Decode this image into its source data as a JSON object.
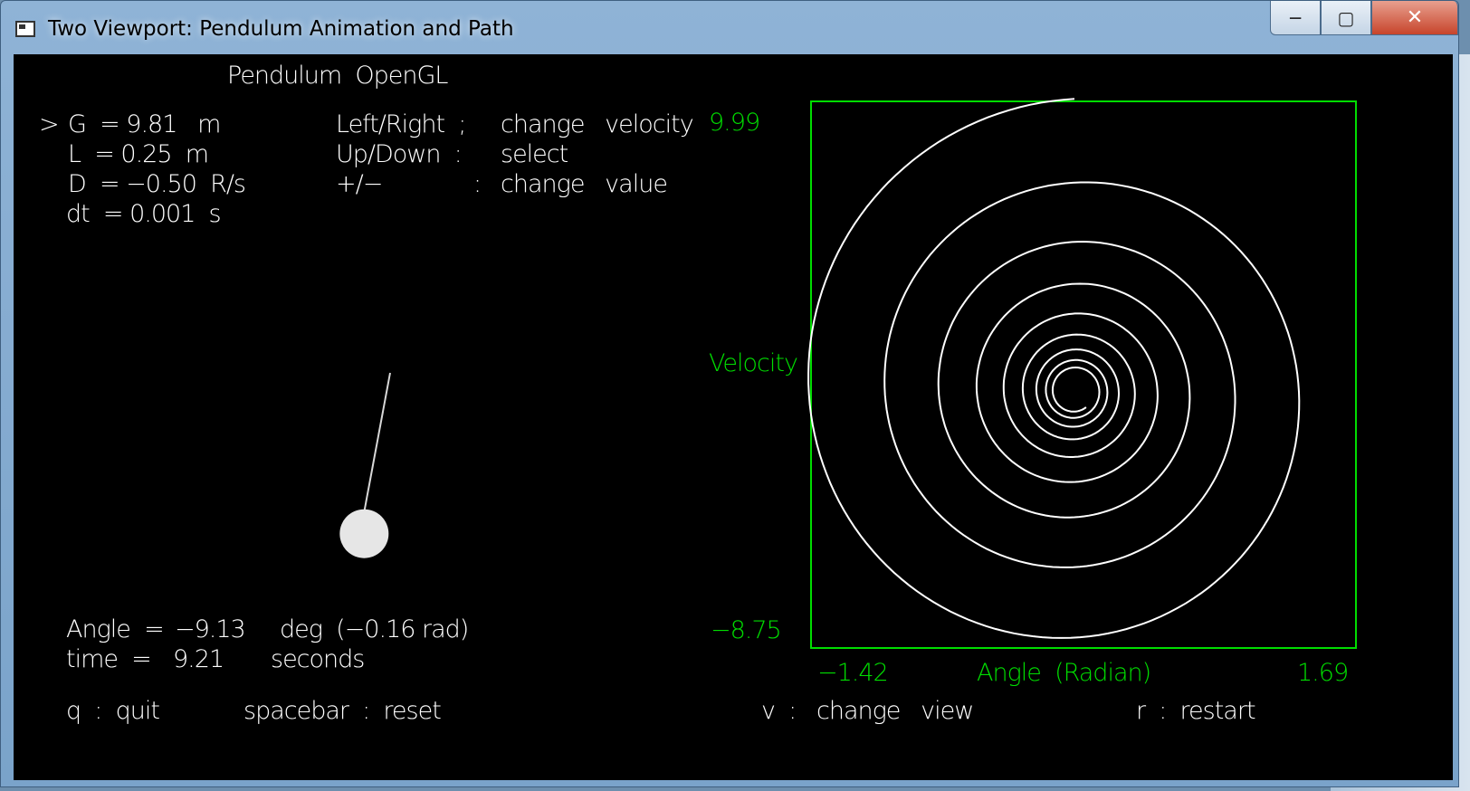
{
  "window": {
    "title": "Two Viewport: Pendulum Animation and Path",
    "minimize_glyph": "─",
    "maximize_glyph": "▢",
    "close_glyph": "✕"
  },
  "header": {
    "title": "Pendulum  OpenGL"
  },
  "params": {
    "cursor": ">",
    "g": "G  = 9.81   m",
    "l": "L  = 0.25  m",
    "d": "D  = −0.50  R/s",
    "dt": "dt  = 0.001  s"
  },
  "help": {
    "lr_key": "Left/Right  ;",
    "lr_desc": "change   velocity",
    "ud_key": "Up/Down  :",
    "ud_desc": "select",
    "pm_key": "+/−",
    "pm_colon": ":",
    "pm_desc": "change   value"
  },
  "readout": {
    "angle_label": "Angle  =",
    "angle_deg": "−9.13",
    "angle_unit": "deg  (−0.16 rad)",
    "time_label": "time  =",
    "time_value": "9.21",
    "time_unit": "seconds"
  },
  "keys": {
    "quit": "q  :  quit",
    "reset": "spacebar  :  reset",
    "view": "v  :   change   view",
    "restart": "r  :  restart"
  },
  "phase_plot": {
    "y_max_label": "9.99",
    "y_min_label": "−8.75",
    "y_axis_label": "Velocity",
    "x_min_label": "−1.42",
    "x_max_label": "1.69",
    "x_axis_label": "Angle  (Radian)",
    "frame_color": "#00dd00",
    "curve_color": "#ffffff"
  },
  "pendulum": {
    "angle_rad": -0.16,
    "bob_color": "#e6e6e6"
  }
}
